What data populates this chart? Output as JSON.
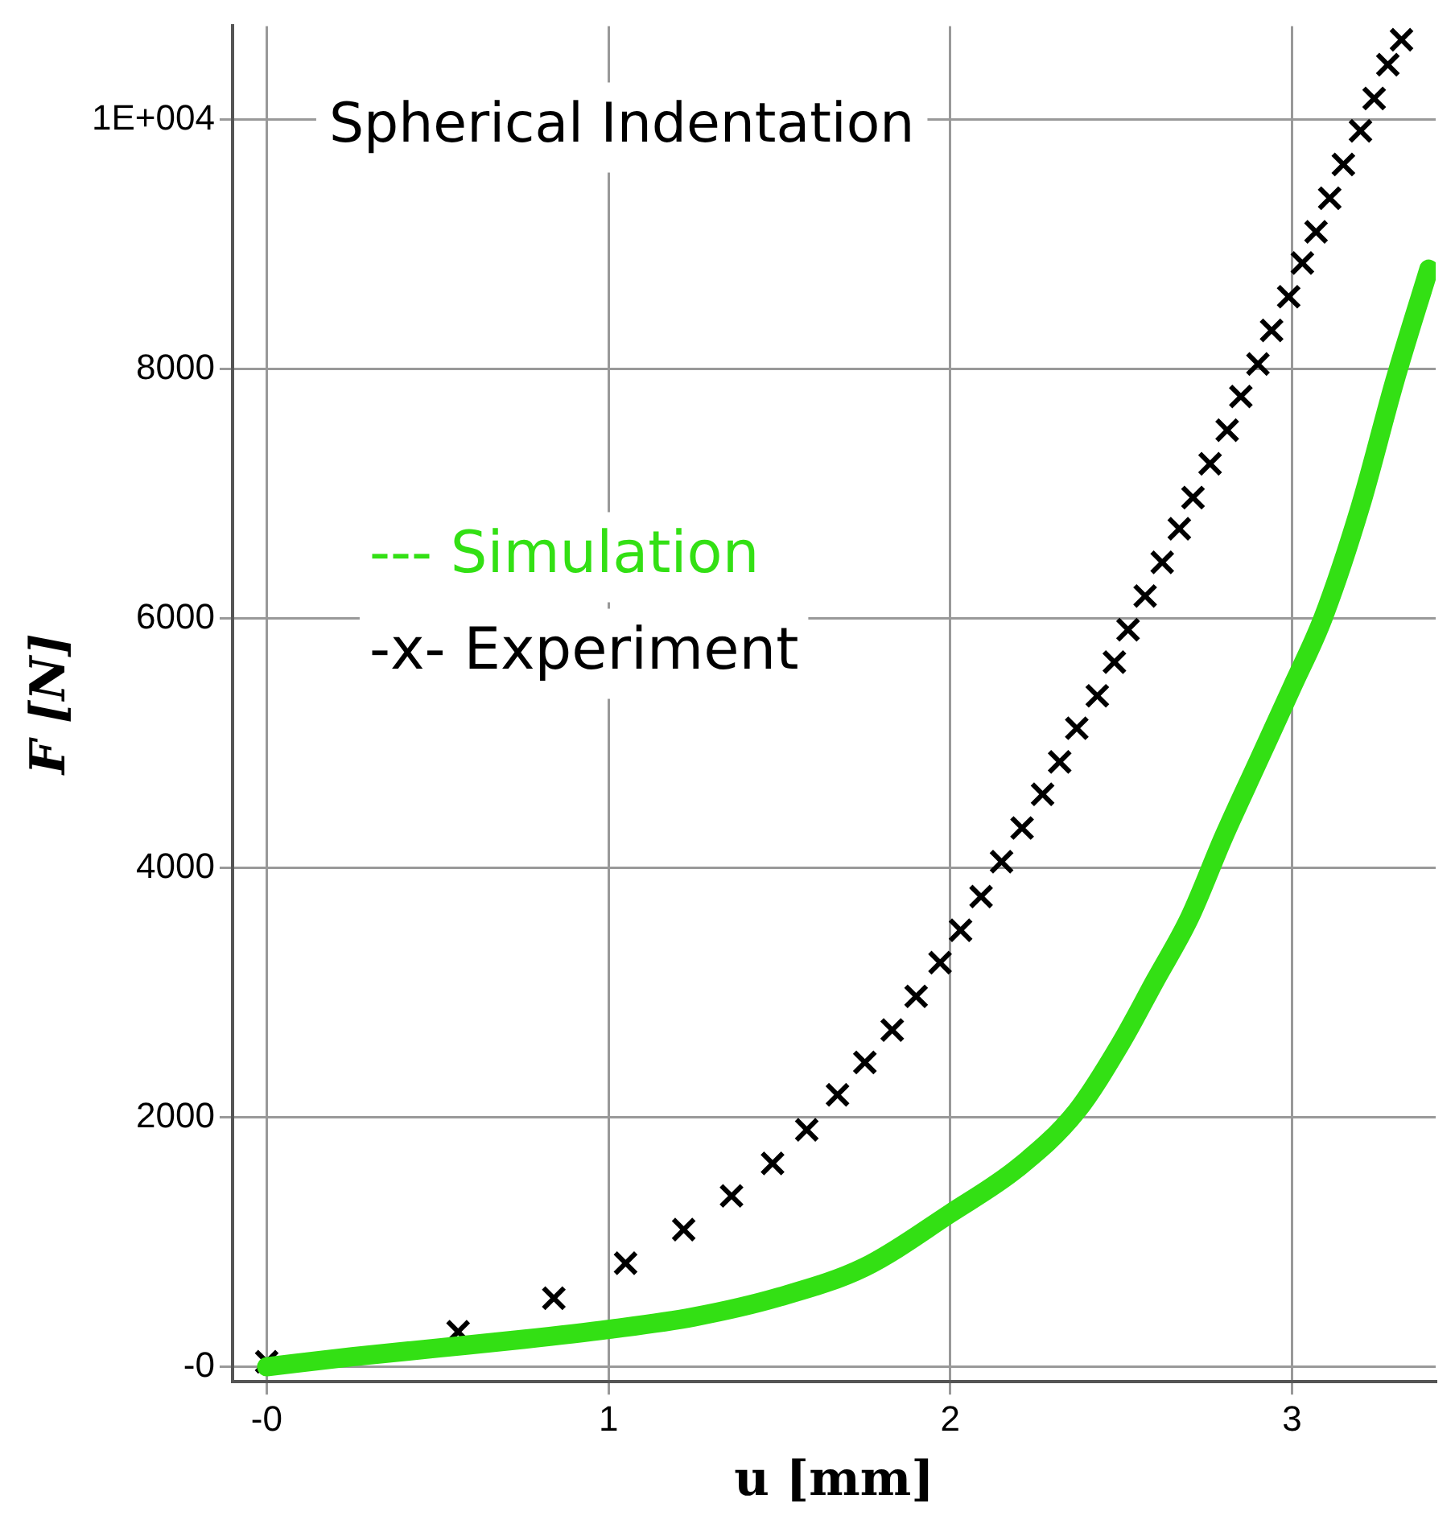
{
  "chart_data": {
    "type": "line",
    "title": "Spherical Indentation",
    "xlabel": "u [mm]",
    "ylabel": "F [N]",
    "xlim": [
      -0.1,
      3.42
    ],
    "ylim": [
      -120,
      10750
    ],
    "xticks": [
      {
        "value": 0,
        "label": "-0"
      },
      1,
      2,
      3
    ],
    "yticks": [
      {
        "value": 0,
        "label": "-0"
      },
      2000,
      4000,
      6000,
      8000,
      {
        "value": 10000,
        "label": "1E+004"
      }
    ],
    "grid": true,
    "legend": "left",
    "series": [
      {
        "name": "--- Simulation",
        "marker": "none",
        "color": "#33e014",
        "x": [
          0,
          0.25,
          0.5,
          0.75,
          1.0,
          1.25,
          1.5,
          1.75,
          2.0,
          2.2,
          2.37,
          2.5,
          2.6,
          2.7,
          2.8,
          2.9,
          3.0,
          3.09,
          3.2,
          3.3,
          3.4
        ],
        "values": [
          0,
          80,
          150,
          220,
          300,
          400,
          560,
          800,
          1230,
          1600,
          2050,
          2600,
          3100,
          3600,
          4250,
          4850,
          5450,
          6000,
          6900,
          7900,
          8800
        ]
      },
      {
        "name": "-x- Experiment",
        "type": "scatter",
        "marker": "cross",
        "color": "#000000",
        "x": [
          0,
          0.56,
          0.84,
          1.05,
          1.22,
          1.36,
          1.48,
          1.58,
          1.67,
          1.75,
          1.83,
          1.9,
          1.97,
          2.03,
          2.09,
          2.15,
          2.21,
          2.27,
          2.32,
          2.37,
          2.43,
          2.48,
          2.52,
          2.57,
          2.62,
          2.67,
          2.71,
          2.76,
          2.81,
          2.85,
          2.9,
          2.94,
          2.99,
          3.03,
          3.07,
          3.11,
          3.15,
          3.2,
          3.24,
          3.28,
          3.32
        ],
        "values": [
          40,
          280,
          550,
          830,
          1100,
          1370,
          1630,
          1900,
          2180,
          2440,
          2700,
          2970,
          3240,
          3500,
          3770,
          4050,
          4320,
          4590,
          4850,
          5120,
          5380,
          5650,
          5910,
          6180,
          6450,
          6720,
          6970,
          7240,
          7510,
          7780,
          8040,
          8310,
          8580,
          8850,
          9100,
          9370,
          9640,
          9910,
          10170,
          10440,
          10640
        ]
      }
    ]
  }
}
